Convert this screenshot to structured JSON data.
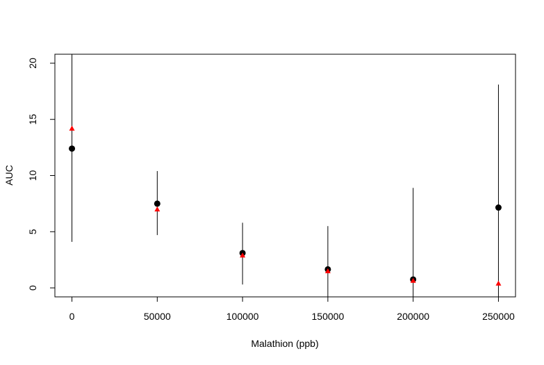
{
  "chart_data": {
    "type": "scatter",
    "title": "",
    "xlabel": "Malathion (ppb)",
    "ylabel": "AUC",
    "xlim": [
      -10000,
      260000
    ],
    "ylim": [
      -0.8,
      20.8
    ],
    "x_ticks": [
      0,
      50000,
      100000,
      150000,
      200000,
      250000
    ],
    "x_tick_labels": [
      "0",
      "50000",
      "100000",
      "150000",
      "200000",
      "250000"
    ],
    "y_ticks": [
      0,
      5,
      10,
      15,
      20
    ],
    "y_tick_labels": [
      "0",
      "5",
      "10",
      "15",
      "20"
    ],
    "grid": false,
    "series": [
      {
        "marker": "circle",
        "color": "#000000",
        "x": [
          0,
          50000,
          100000,
          150000,
          200000,
          250000
        ],
        "y": [
          12.4,
          7.5,
          3.1,
          1.65,
          0.75,
          7.15
        ],
        "error_low": [
          4.1,
          4.7,
          0.3,
          -0.8,
          -0.8,
          -0.8
        ],
        "error_high": [
          20.8,
          10.4,
          5.8,
          5.5,
          8.9,
          18.1
        ]
      },
      {
        "marker": "triangle",
        "color": "#ff0000",
        "x": [
          0,
          50000,
          100000,
          150000,
          200000,
          250000
        ],
        "y": [
          14.2,
          7.0,
          2.9,
          1.5,
          0.65,
          0.4
        ]
      }
    ]
  }
}
